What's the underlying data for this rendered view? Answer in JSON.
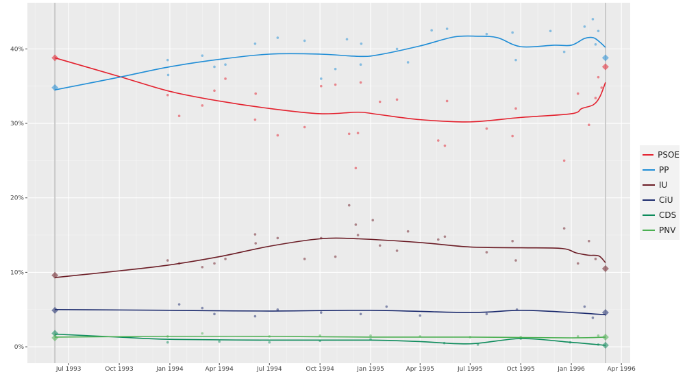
{
  "chart_data": {
    "type": "line",
    "title": "",
    "xlabel": "",
    "ylabel": "",
    "xlim": [
      "1993-04-17",
      "1996-04-17"
    ],
    "ylim": [
      -2.2,
      46.2
    ],
    "grid": true,
    "legend_placement": "right",
    "x_ticks": [
      {
        "date": "1993-07-01",
        "label": "Jul 1993"
      },
      {
        "date": "1993-10-01",
        "label": "Oct 1993"
      },
      {
        "date": "1994-01-01",
        "label": "Jan 1994"
      },
      {
        "date": "1994-04-01",
        "label": "Apr 1994"
      },
      {
        "date": "1994-07-01",
        "label": "Jul 1994"
      },
      {
        "date": "1994-10-01",
        "label": "Oct 1994"
      },
      {
        "date": "1995-01-01",
        "label": "Jan 1995"
      },
      {
        "date": "1995-04-01",
        "label": "Apr 1995"
      },
      {
        "date": "1995-07-01",
        "label": "Jul 1995"
      },
      {
        "date": "1995-10-01",
        "label": "Oct 1995"
      },
      {
        "date": "1996-01-01",
        "label": "Jan 1996"
      },
      {
        "date": "1996-04-01",
        "label": "Apr 1996"
      }
    ],
    "y_ticks": [
      {
        "value": 0,
        "label": "0%"
      },
      {
        "value": 10,
        "label": "10%"
      },
      {
        "value": 20,
        "label": "20%"
      },
      {
        "value": 30,
        "label": "30%"
      },
      {
        "value": 40,
        "label": "40%"
      }
    ],
    "election_dates": [
      "1993-06-06",
      "1996-03-03"
    ],
    "series": [
      {
        "name": "PSOE",
        "color": "#e3202d",
        "results": [
          38.8,
          37.6
        ],
        "trend": [
          [
            "1993-06-06",
            38.8
          ],
          [
            "1993-10-01",
            36.3
          ],
          [
            "1994-01-01",
            34.3
          ],
          [
            "1994-04-01",
            33.0
          ],
          [
            "1994-07-01",
            32.0
          ],
          [
            "1994-10-01",
            31.3
          ],
          [
            "1994-12-10",
            31.5
          ],
          [
            "1995-01-15",
            31.2
          ],
          [
            "1995-04-01",
            30.5
          ],
          [
            "1995-07-01",
            30.2
          ],
          [
            "1995-10-01",
            30.8
          ],
          [
            "1996-01-01",
            31.3
          ],
          [
            "1996-01-20",
            32.0
          ],
          [
            "1996-02-10",
            32.5
          ],
          [
            "1996-02-22",
            33.6
          ],
          [
            "1996-03-03",
            35.5
          ]
        ],
        "polls": [
          [
            "1993-12-28",
            33.8
          ],
          [
            "1994-01-18",
            31.0
          ],
          [
            "1994-03-01",
            32.4
          ],
          [
            "1994-03-23",
            34.4
          ],
          [
            "1994-04-12",
            36.0
          ],
          [
            "1994-06-05",
            30.5
          ],
          [
            "1994-06-06",
            34.0
          ],
          [
            "1994-07-16",
            28.4
          ],
          [
            "1994-09-03",
            29.5
          ],
          [
            "1994-10-03",
            35.0
          ],
          [
            "1994-10-29",
            35.2
          ],
          [
            "1994-11-23",
            28.6
          ],
          [
            "1994-12-05",
            24.0
          ],
          [
            "1994-12-09",
            28.7
          ],
          [
            "1994-12-14",
            35.5
          ],
          [
            "1995-01-18",
            32.9
          ],
          [
            "1995-02-18",
            33.2
          ],
          [
            "1995-05-04",
            27.7
          ],
          [
            "1995-05-16",
            27.0
          ],
          [
            "1995-05-20",
            33.0
          ],
          [
            "1995-07-31",
            29.3
          ],
          [
            "1995-09-16",
            28.3
          ],
          [
            "1995-09-22",
            32.0
          ],
          [
            "1995-12-19",
            25.0
          ],
          [
            "1996-01-13",
            34.0
          ],
          [
            "1996-02-02",
            29.8
          ],
          [
            "1996-02-19",
            36.2
          ],
          [
            "1996-02-14",
            33.4
          ],
          [
            "1996-02-25",
            34.8
          ]
        ]
      },
      {
        "name": "PP",
        "color": "#1f8dd6",
        "results": [
          34.8,
          38.8
        ],
        "trend": [
          [
            "1993-06-06",
            34.5
          ],
          [
            "1993-10-01",
            36.2
          ],
          [
            "1994-01-01",
            37.6
          ],
          [
            "1994-04-01",
            38.6
          ],
          [
            "1994-07-01",
            39.3
          ],
          [
            "1994-10-01",
            39.3
          ],
          [
            "1994-12-10",
            39.0
          ],
          [
            "1995-01-15",
            39.2
          ],
          [
            "1995-04-01",
            40.4
          ],
          [
            "1995-06-01",
            41.6
          ],
          [
            "1995-07-15",
            41.7
          ],
          [
            "1995-08-20",
            41.5
          ],
          [
            "1995-10-01",
            40.3
          ],
          [
            "1995-12-01",
            40.5
          ],
          [
            "1996-01-01",
            40.5
          ],
          [
            "1996-01-25",
            41.4
          ],
          [
            "1996-02-10",
            41.5
          ],
          [
            "1996-02-22",
            40.9
          ],
          [
            "1996-03-03",
            40.2
          ]
        ],
        "polls": [
          [
            "1993-12-28",
            38.5
          ],
          [
            "1993-12-29",
            36.5
          ],
          [
            "1994-03-01",
            39.1
          ],
          [
            "1994-03-23",
            37.6
          ],
          [
            "1994-04-12",
            37.9
          ],
          [
            "1994-06-05",
            40.7
          ],
          [
            "1994-07-16",
            41.5
          ],
          [
            "1994-09-03",
            41.1
          ],
          [
            "1994-10-03",
            36.0
          ],
          [
            "1994-10-29",
            37.3
          ],
          [
            "1994-11-19",
            41.3
          ],
          [
            "1994-12-14",
            37.9
          ],
          [
            "1994-12-15",
            40.7
          ],
          [
            "1995-02-18",
            40.0
          ],
          [
            "1995-03-10",
            38.2
          ],
          [
            "1995-04-22",
            42.5
          ],
          [
            "1995-05-20",
            42.7
          ],
          [
            "1995-07-31",
            42.0
          ],
          [
            "1995-09-16",
            42.2
          ],
          [
            "1995-09-22",
            38.5
          ],
          [
            "1995-11-24",
            42.4
          ],
          [
            "1995-12-19",
            39.6
          ],
          [
            "1996-01-25",
            43.0
          ],
          [
            "1996-02-09",
            44.0
          ],
          [
            "1996-02-19",
            42.4
          ],
          [
            "1996-02-14",
            40.6
          ]
        ]
      },
      {
        "name": "IU",
        "color": "#6b1c25",
        "results": [
          9.6,
          10.5
        ],
        "trend": [
          [
            "1993-06-06",
            9.3
          ],
          [
            "1993-10-01",
            10.2
          ],
          [
            "1994-01-01",
            11.0
          ],
          [
            "1994-04-01",
            12.1
          ],
          [
            "1994-07-01",
            13.5
          ],
          [
            "1994-10-01",
            14.5
          ],
          [
            "1994-12-10",
            14.5
          ],
          [
            "1995-04-01",
            14.0
          ],
          [
            "1995-07-01",
            13.4
          ],
          [
            "1995-10-01",
            13.3
          ],
          [
            "1995-12-15",
            13.2
          ],
          [
            "1996-01-10",
            12.6
          ],
          [
            "1996-02-01",
            12.3
          ],
          [
            "1996-02-20",
            12.2
          ],
          [
            "1996-03-03",
            11.3
          ]
        ],
        "polls": [
          [
            "1993-12-28",
            11.6
          ],
          [
            "1994-01-18",
            11.2
          ],
          [
            "1994-03-01",
            10.7
          ],
          [
            "1994-03-23",
            11.2
          ],
          [
            "1994-04-12",
            11.8
          ],
          [
            "1994-06-05",
            15.1
          ],
          [
            "1994-06-06",
            13.9
          ],
          [
            "1994-07-16",
            14.6
          ],
          [
            "1994-09-03",
            11.8
          ],
          [
            "1994-10-03",
            14.6
          ],
          [
            "1994-10-29",
            12.1
          ],
          [
            "1994-11-23",
            19.0
          ],
          [
            "1994-12-05",
            16.4
          ],
          [
            "1994-12-09",
            15.0
          ],
          [
            "1995-01-05",
            17.0
          ],
          [
            "1995-01-18",
            13.6
          ],
          [
            "1995-02-18",
            12.9
          ],
          [
            "1995-03-10",
            15.5
          ],
          [
            "1995-05-04",
            14.4
          ],
          [
            "1995-05-16",
            14.8
          ],
          [
            "1995-07-31",
            12.7
          ],
          [
            "1995-09-16",
            14.2
          ],
          [
            "1995-09-22",
            11.6
          ],
          [
            "1995-12-19",
            15.9
          ],
          [
            "1996-01-13",
            11.2
          ],
          [
            "1996-02-02",
            14.2
          ],
          [
            "1996-02-14",
            11.8
          ]
        ]
      },
      {
        "name": "CiU",
        "color": "#1b2a6d",
        "results": [
          4.9,
          4.6
        ],
        "trend": [
          [
            "1993-06-06",
            5.0
          ],
          [
            "1994-01-01",
            4.9
          ],
          [
            "1994-07-01",
            4.8
          ],
          [
            "1995-01-01",
            4.9
          ],
          [
            "1995-07-01",
            4.6
          ],
          [
            "1995-10-01",
            4.9
          ],
          [
            "1996-01-01",
            4.6
          ],
          [
            "1996-03-03",
            4.3
          ]
        ],
        "polls": [
          [
            "1994-01-18",
            5.7
          ],
          [
            "1994-03-01",
            5.2
          ],
          [
            "1994-03-23",
            4.4
          ],
          [
            "1994-06-05",
            4.1
          ],
          [
            "1994-07-16",
            5.0
          ],
          [
            "1994-10-03",
            4.6
          ],
          [
            "1994-12-14",
            4.4
          ],
          [
            "1995-01-30",
            5.4
          ],
          [
            "1995-04-01",
            4.2
          ],
          [
            "1995-07-31",
            4.4
          ],
          [
            "1995-09-24",
            5.0
          ],
          [
            "1996-01-25",
            5.4
          ],
          [
            "1996-02-09",
            3.9
          ]
        ]
      },
      {
        "name": "CDS",
        "color": "#0c8b5b",
        "results": [
          1.8,
          0.2
        ],
        "trend": [
          [
            "1993-06-06",
            1.7
          ],
          [
            "1993-10-01",
            1.3
          ],
          [
            "1994-01-01",
            1.0
          ],
          [
            "1994-07-01",
            0.9
          ],
          [
            "1995-01-01",
            0.9
          ],
          [
            "1995-04-01",
            0.7
          ],
          [
            "1995-07-01",
            0.4
          ],
          [
            "1995-10-01",
            1.1
          ],
          [
            "1996-01-01",
            0.6
          ],
          [
            "1996-03-03",
            0.2
          ]
        ],
        "polls": [
          [
            "1993-12-28",
            0.6
          ],
          [
            "1994-04-01",
            0.7
          ],
          [
            "1994-07-01",
            0.6
          ],
          [
            "1994-10-01",
            0.8
          ],
          [
            "1995-01-01",
            1.0
          ],
          [
            "1995-05-15",
            0.5
          ],
          [
            "1995-07-15",
            0.3
          ],
          [
            "1995-10-01",
            1.1
          ],
          [
            "1995-12-30",
            0.6
          ],
          [
            "1996-02-19",
            0.3
          ]
        ]
      },
      {
        "name": "PNV",
        "color": "#4cb052",
        "results": [
          1.2,
          1.3
        ],
        "trend": [
          [
            "1993-06-06",
            1.3
          ],
          [
            "1994-01-01",
            1.4
          ],
          [
            "1994-07-01",
            1.4
          ],
          [
            "1995-01-01",
            1.3
          ],
          [
            "1995-07-01",
            1.3
          ],
          [
            "1996-01-01",
            1.2
          ],
          [
            "1996-03-03",
            1.3
          ]
        ],
        "polls": [
          [
            "1993-12-28",
            1.4
          ],
          [
            "1994-03-01",
            1.8
          ],
          [
            "1994-07-01",
            1.4
          ],
          [
            "1994-10-01",
            1.5
          ],
          [
            "1995-01-01",
            1.5
          ],
          [
            "1995-04-01",
            1.4
          ],
          [
            "1995-07-01",
            1.3
          ],
          [
            "1995-10-01",
            1.3
          ],
          [
            "1996-01-13",
            1.4
          ],
          [
            "1996-02-19",
            1.5
          ]
        ]
      }
    ]
  }
}
